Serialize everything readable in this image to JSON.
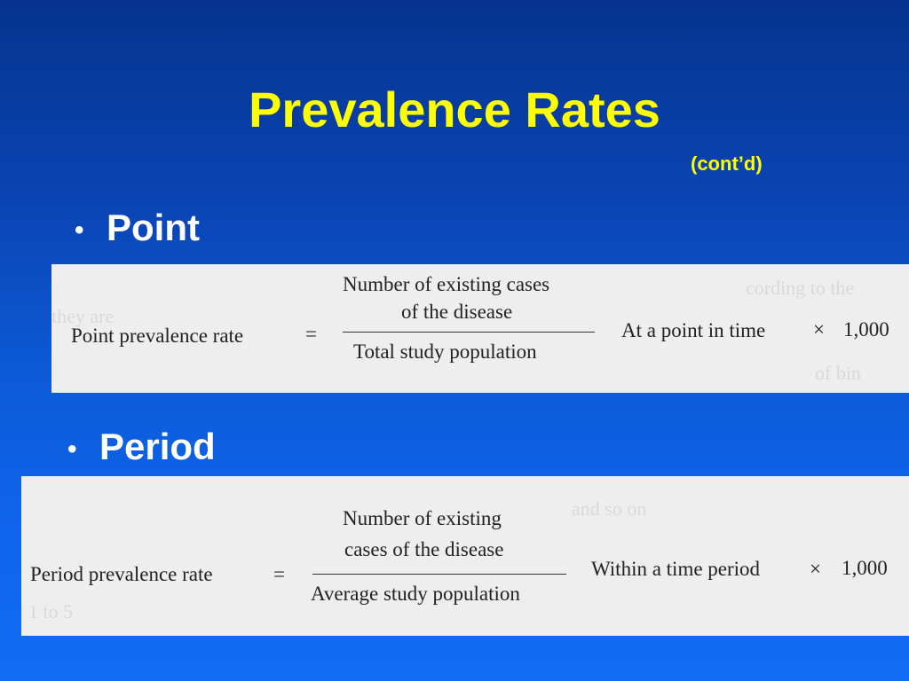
{
  "slide": {
    "title": "Prevalence Rates",
    "subtitle": "(cont’d)",
    "colors": {
      "title": "#ffff00",
      "bullet_text": "#ffffff",
      "background_top": "#06338f",
      "background_bottom": "#116cf4",
      "formula_panel": "#eeeeee"
    }
  },
  "point": {
    "bullet_symbol": "•",
    "label": "Point",
    "formula": {
      "lhs": "Point prevalence rate",
      "equals": "=",
      "numerator_line1": "Number of existing cases",
      "numerator_line2": "of the disease",
      "denominator": "Total study population",
      "qualifier": "At a point in time",
      "times": "×",
      "multiplier": "1,000"
    }
  },
  "period": {
    "bullet_symbol": "•",
    "label": "Period",
    "formula": {
      "lhs": "Period prevalence rate",
      "equals": "=",
      "numerator_line1": "Number of existing",
      "numerator_line2": "cases of the disease",
      "denominator": "Average study population",
      "qualifier": "Within a time period",
      "times": "×",
      "multiplier": "1,000"
    }
  }
}
